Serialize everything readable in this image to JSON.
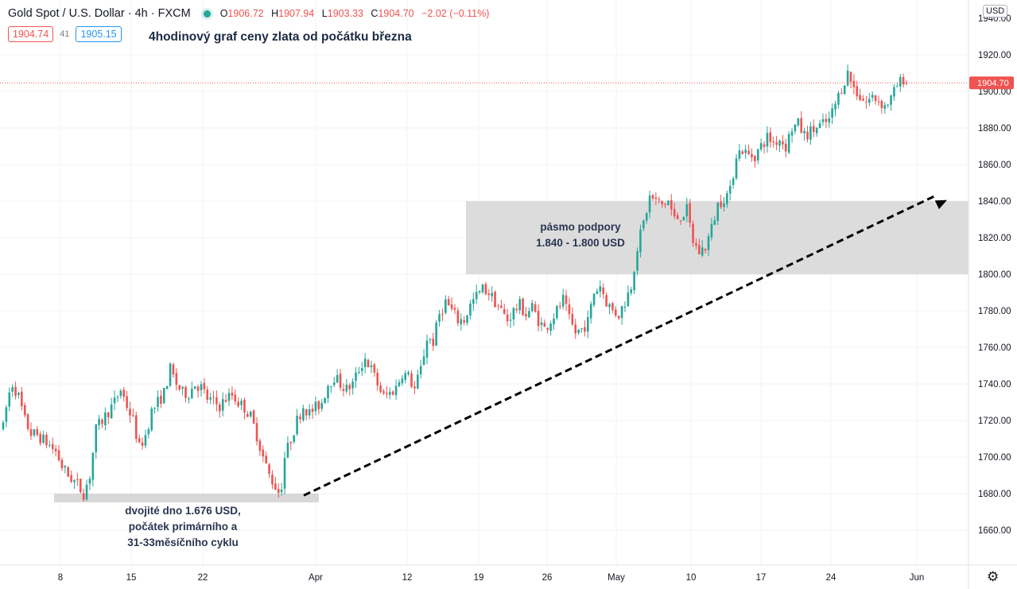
{
  "header": {
    "symbol": "Gold Spot / U.S. Dollar",
    "interval": "4h",
    "exchange": "FXCM",
    "o_label": "O",
    "open": "1906.72",
    "h_label": "H",
    "high": "1907.94",
    "l_label": "L",
    "low": "1903.33",
    "c_label": "C",
    "close": "1904.70",
    "change": "−2.02 (−0.11%)"
  },
  "bid": "1904.74",
  "spread": "41",
  "ask": "1905.15",
  "title": "4hodinový graf ceny zlata od počátku března",
  "support_zone": {
    "line1": "pásmo podpory",
    "line2": "1.840 - 1.800 USD",
    "price_high": 1840,
    "price_low": 1800
  },
  "double_bottom": {
    "line1": "dvojité dno 1.676 USD,",
    "line2": "počátek primárního a",
    "line3": "31-33měsíčního cyklu",
    "price": 1676
  },
  "currency_button": "USD",
  "settings_icon": "gear-icon",
  "colors": {
    "up": "#26a69a",
    "down": "#ef5350",
    "zone": "#dcdcdc",
    "price_tag": "#ef5350"
  },
  "chart_data": {
    "type": "candlestick",
    "current_price": 1904.7,
    "current_price_label": "1904.70",
    "y_ticks": [
      1660,
      1680,
      1700,
      1720,
      1740,
      1760,
      1780,
      1800,
      1820,
      1840,
      1860,
      1880,
      1900,
      1920
    ],
    "y_tick_labels": [
      "1660.00",
      "1680.00",
      "1700.00",
      "1720.00",
      "1740.00",
      "1760.00",
      "1780.00",
      "1800.00",
      "1820.00",
      "1840.00",
      "1860.00",
      "1880.00",
      "1900.00",
      "1920.00"
    ],
    "x_ticks": [
      "8",
      "15",
      "22",
      "Apr",
      "12",
      "19",
      "26",
      "May",
      "10",
      "17",
      "24",
      "Jun"
    ],
    "ylim": [
      1650,
      1945
    ],
    "trendline": {
      "from": {
        "date": "Mar 31",
        "price": 1679
      },
      "to": {
        "date": "Jun 3",
        "price": 1845
      }
    },
    "path_points": [
      [
        0,
        1716
      ],
      [
        1,
        1727
      ],
      [
        2,
        1735
      ],
      [
        3,
        1740
      ],
      [
        5,
        1733
      ],
      [
        7,
        1720
      ],
      [
        9,
        1713
      ],
      [
        11,
        1712
      ],
      [
        14,
        1708
      ],
      [
        17,
        1703
      ],
      [
        19,
        1695
      ],
      [
        21,
        1690
      ],
      [
        24,
        1685
      ],
      [
        26,
        1680
      ],
      [
        28,
        1690
      ],
      [
        30,
        1715
      ],
      [
        32,
        1720
      ],
      [
        34,
        1725
      ],
      [
        36,
        1730
      ],
      [
        38,
        1737
      ],
      [
        40,
        1728
      ],
      [
        42,
        1720
      ],
      [
        44,
        1705
      ],
      [
        46,
        1712
      ],
      [
        48,
        1725
      ],
      [
        50,
        1730
      ],
      [
        52,
        1735
      ],
      [
        54,
        1748
      ],
      [
        56,
        1740
      ],
      [
        58,
        1735
      ],
      [
        60,
        1735
      ],
      [
        62,
        1740
      ],
      [
        64,
        1738
      ],
      [
        66,
        1732
      ],
      [
        68,
        1730
      ],
      [
        70,
        1728
      ],
      [
        72,
        1732
      ],
      [
        74,
        1734
      ],
      [
        76,
        1730
      ],
      [
        78,
        1727
      ],
      [
        80,
        1722
      ],
      [
        82,
        1712
      ],
      [
        84,
        1700
      ],
      [
        86,
        1690
      ],
      [
        88,
        1684
      ],
      [
        89,
        1681
      ],
      [
        90,
        1685
      ],
      [
        91,
        1700
      ],
      [
        93,
        1710
      ],
      [
        95,
        1720
      ],
      [
        97,
        1728
      ],
      [
        99,
        1724
      ],
      [
        101,
        1727
      ],
      [
        103,
        1730
      ],
      [
        105,
        1740
      ],
      [
        107,
        1744
      ],
      [
        109,
        1740
      ],
      [
        111,
        1737
      ],
      [
        113,
        1740
      ],
      [
        115,
        1748
      ],
      [
        117,
        1754
      ],
      [
        119,
        1748
      ],
      [
        121,
        1740
      ],
      [
        123,
        1733
      ],
      [
        125,
        1735
      ],
      [
        127,
        1738
      ],
      [
        129,
        1746
      ],
      [
        131,
        1744
      ],
      [
        133,
        1737
      ],
      [
        135,
        1748
      ],
      [
        137,
        1765
      ],
      [
        139,
        1763
      ],
      [
        141,
        1778
      ],
      [
        143,
        1785
      ],
      [
        145,
        1780
      ],
      [
        147,
        1775
      ],
      [
        149,
        1775
      ],
      [
        151,
        1783
      ],
      [
        153,
        1788
      ],
      [
        155,
        1792
      ],
      [
        157,
        1790
      ],
      [
        159,
        1785
      ],
      [
        161,
        1780
      ],
      [
        163,
        1775
      ],
      [
        165,
        1780
      ],
      [
        167,
        1783
      ],
      [
        169,
        1778
      ],
      [
        171,
        1782
      ],
      [
        173,
        1775
      ],
      [
        175,
        1770
      ],
      [
        177,
        1775
      ],
      [
        179,
        1780
      ],
      [
        181,
        1786
      ],
      [
        183,
        1775
      ],
      [
        185,
        1768
      ],
      [
        187,
        1770
      ],
      [
        189,
        1774
      ],
      [
        191,
        1790
      ],
      [
        193,
        1794
      ],
      [
        195,
        1785
      ],
      [
        197,
        1780
      ],
      [
        199,
        1778
      ],
      [
        201,
        1785
      ],
      [
        203,
        1794
      ],
      [
        205,
        1815
      ],
      [
        207,
        1828
      ],
      [
        209,
        1842
      ],
      [
        211,
        1840
      ],
      [
        213,
        1838
      ],
      [
        215,
        1840
      ],
      [
        217,
        1830
      ],
      [
        219,
        1832
      ],
      [
        221,
        1835
      ],
      [
        223,
        1818
      ],
      [
        225,
        1812
      ],
      [
        227,
        1815
      ],
      [
        229,
        1825
      ],
      [
        231,
        1838
      ],
      [
        233,
        1842
      ],
      [
        235,
        1845
      ],
      [
        237,
        1866
      ],
      [
        239,
        1868
      ],
      [
        241,
        1865
      ],
      [
        243,
        1865
      ],
      [
        245,
        1870
      ],
      [
        247,
        1875
      ],
      [
        249,
        1872
      ],
      [
        251,
        1874
      ],
      [
        253,
        1870
      ],
      [
        255,
        1880
      ],
      [
        257,
        1882
      ],
      [
        259,
        1876
      ],
      [
        261,
        1878
      ],
      [
        263,
        1880
      ],
      [
        265,
        1882
      ],
      [
        267,
        1884
      ],
      [
        269,
        1893
      ],
      [
        271,
        1902
      ],
      [
        273,
        1910
      ],
      [
        275,
        1902
      ],
      [
        277,
        1897
      ],
      [
        279,
        1894
      ],
      [
        281,
        1897
      ],
      [
        283,
        1895
      ],
      [
        285,
        1892
      ],
      [
        287,
        1896
      ],
      [
        289,
        1903
      ],
      [
        291,
        1907
      ],
      [
        292,
        1904.7
      ]
    ]
  }
}
